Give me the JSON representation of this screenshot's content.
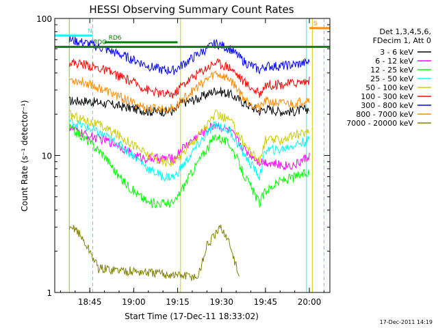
{
  "chart_data": {
    "type": "line",
    "title": "HESSI Observing Summary Count Rates",
    "xlabel": "Start Time (17-Dec-11 18:33:02)",
    "ylabel": "Count Rate (s⁻¹ detector⁻¹)",
    "x_scale": "time",
    "y_scale": "log",
    "xlim": [
      "18:33:02",
      "20:07:00"
    ],
    "ylim": [
      1,
      100
    ],
    "x_ticks": [
      "18:45",
      "19:00",
      "19:15",
      "19:30",
      "19:45",
      "20:00"
    ],
    "y_ticks": [
      "1",
      "10",
      "100"
    ],
    "grid": false,
    "legend_position": "right",
    "legend_header": [
      "Det 1,3,4,5,6,",
      "FDecim 1, Att 0"
    ],
    "series": [
      {
        "name": "3 - 6 keV",
        "color": "#000000",
        "x": [
          "18:38",
          "18:44",
          "18:50",
          "18:55",
          "19:00",
          "19:05",
          "19:10",
          "19:14",
          "19:16",
          "19:22",
          "19:28",
          "19:33",
          "19:38",
          "19:43",
          "19:45",
          "19:50",
          "19:55",
          "20:00"
        ],
        "values": [
          25,
          25,
          24,
          23,
          22,
          21,
          21,
          21,
          24,
          26,
          30,
          28,
          24,
          21,
          22,
          21,
          21,
          22
        ]
      },
      {
        "name": "6 - 12 keV",
        "color": "#ff00ff",
        "x": [
          "18:38",
          "18:44",
          "18:50",
          "18:55",
          "19:00",
          "19:05",
          "19:10",
          "19:14",
          "19:16",
          "19:22",
          "19:28",
          "19:33",
          "19:38",
          "19:43",
          "19:45",
          "19:50",
          "19:55",
          "20:00"
        ],
        "values": [
          16,
          14,
          13,
          12,
          10,
          9.5,
          9.5,
          9.5,
          11,
          14,
          17,
          15,
          11,
          9,
          9,
          8.5,
          8.5,
          10
        ]
      },
      {
        "name": "12 - 25 keV",
        "color": "#00ff00",
        "x": [
          "18:38",
          "18:44",
          "18:50",
          "18:55",
          "19:00",
          "19:05",
          "19:10",
          "19:14",
          "19:16",
          "19:22",
          "19:28",
          "19:33",
          "19:38",
          "19:43",
          "19:45",
          "19:50",
          "19:55",
          "20:00"
        ],
        "values": [
          16,
          13,
          10,
          7,
          5.5,
          4.5,
          4.5,
          4.5,
          5.5,
          9,
          14,
          12,
          7,
          4.5,
          5.5,
          6.5,
          7,
          7.5
        ]
      },
      {
        "name": "25 - 50 keV",
        "color": "#00ffff",
        "x": [
          "18:38",
          "18:44",
          "18:50",
          "18:55",
          "19:00",
          "19:05",
          "19:10",
          "19:14",
          "19:16",
          "19:22",
          "19:28",
          "19:33",
          "19:38",
          "19:43",
          "19:45",
          "19:50",
          "19:55",
          "20:00"
        ],
        "values": [
          18,
          16,
          14,
          12,
          10,
          8,
          7,
          7,
          8,
          12,
          17,
          15,
          10,
          7,
          11,
          11,
          12,
          13
        ]
      },
      {
        "name": "50 - 100 keV",
        "color": "#cccc00",
        "x": [
          "18:38",
          "18:44",
          "18:50",
          "18:55",
          "19:00",
          "19:05",
          "19:10",
          "19:14",
          "19:16",
          "19:22",
          "19:28",
          "19:33",
          "19:38",
          "19:43",
          "19:45",
          "19:50",
          "19:55",
          "20:00"
        ],
        "values": [
          20,
          18,
          16,
          14,
          12,
          10,
          9,
          9,
          10,
          14,
          20,
          18,
          12,
          9,
          13,
          13,
          14,
          15
        ]
      },
      {
        "name": "100 - 300 keV",
        "color": "#ff0000",
        "x": [
          "18:38",
          "18:44",
          "18:50",
          "18:55",
          "19:00",
          "19:05",
          "19:10",
          "19:14",
          "19:16",
          "19:22",
          "19:28",
          "19:33",
          "19:38",
          "19:43",
          "19:45",
          "19:50",
          "19:55",
          "20:00"
        ],
        "values": [
          48,
          46,
          42,
          38,
          34,
          30,
          28,
          28,
          32,
          40,
          48,
          44,
          34,
          28,
          33,
          33,
          34,
          35
        ]
      },
      {
        "name": "300 - 800 keV",
        "color": "#0000ff",
        "x": [
          "18:38",
          "18:44",
          "18:50",
          "18:55",
          "19:00",
          "19:05",
          "19:10",
          "19:14",
          "19:16",
          "19:22",
          "19:28",
          "19:33",
          "19:38",
          "19:43",
          "19:45",
          "19:50",
          "19:55",
          "20:00"
        ],
        "values": [
          70,
          66,
          60,
          55,
          50,
          45,
          42,
          42,
          45,
          55,
          66,
          60,
          48,
          42,
          45,
          45,
          46,
          48
        ]
      },
      {
        "name": "800 - 7000 keV",
        "color": "#ff8c00",
        "x": [
          "18:38",
          "18:44",
          "18:50",
          "18:55",
          "19:00",
          "19:05",
          "19:10",
          "19:14",
          "19:16",
          "19:22",
          "19:28",
          "19:33",
          "19:38",
          "19:43",
          "19:45",
          "19:50",
          "19:55",
          "20:00"
        ],
        "values": [
          36,
          34,
          30,
          27,
          24,
          22,
          22,
          22,
          25,
          32,
          40,
          36,
          26,
          22,
          25,
          24,
          24,
          26
        ]
      },
      {
        "name": "7000 - 20000 keV",
        "color": "#808000",
        "x": [
          "18:38",
          "18:40",
          "18:45",
          "18:48",
          "19:22",
          "19:25",
          "19:30",
          "19:33",
          "19:36"
        ],
        "values": [
          2.8,
          3,
          2,
          1.5,
          1.3,
          2.2,
          3,
          2.2,
          1.3
        ]
      }
    ],
    "annotations": [
      {
        "label": "N",
        "color": "#00ffff",
        "x_start": "18:33:02",
        "x_end": "18:46",
        "y": 75
      },
      {
        "label": "S",
        "color": "#ff8c00",
        "x_start": "20:00",
        "x_end": "20:07",
        "y": 85
      },
      {
        "label": "RDO",
        "color": "#008000",
        "x_start": "18:33:02",
        "x_end": "20:07",
        "y": 62
      },
      {
        "label": "RD6",
        "color": "#008000",
        "x_start": "18:50",
        "x_end": "19:15",
        "y": 67
      }
    ],
    "markers": [
      {
        "color": "#00ffff",
        "style": "solid",
        "x": [
          "18:38",
          "19:59"
        ]
      },
      {
        "color": "#00ffff",
        "style": "dashed",
        "x": [
          "18:46",
          "20:05"
        ]
      },
      {
        "color": "#cccc00",
        "style": "solid",
        "x": [
          "18:38",
          "19:16",
          "20:01"
        ]
      }
    ]
  },
  "footer": {
    "timestamp": "17-Dec-2011 14:19"
  }
}
